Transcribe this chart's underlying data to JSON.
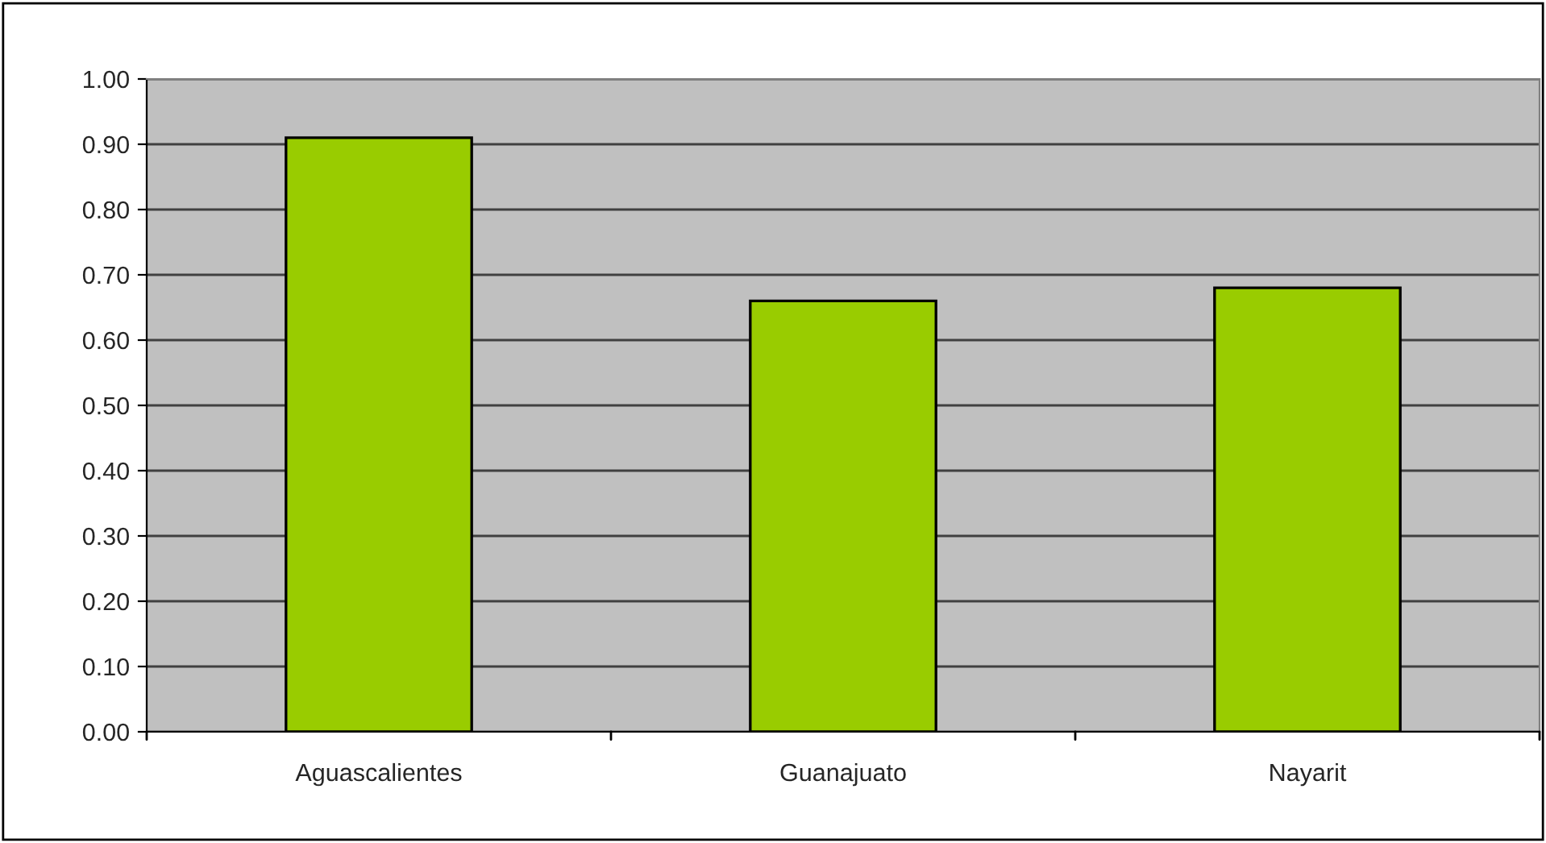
{
  "chart_data": {
    "type": "bar",
    "categories": [
      "Aguascalientes",
      "Guanajuato",
      "Nayarit"
    ],
    "values": [
      0.91,
      0.66,
      0.68
    ],
    "color": "#99cc00",
    "ylim": [
      0,
      1
    ],
    "yticks": [
      {
        "value": 0,
        "label": "0.00"
      },
      {
        "value": 0.1,
        "label": "0.10"
      },
      {
        "value": 0.2,
        "label": "0.20"
      },
      {
        "value": 0.3,
        "label": "0.30"
      },
      {
        "value": 0.4,
        "label": "0.40"
      },
      {
        "value": 0.5,
        "label": "0.50"
      },
      {
        "value": 0.6,
        "label": "0.60"
      },
      {
        "value": 0.7,
        "label": "0.70"
      },
      {
        "value": 0.8,
        "label": "0.80"
      },
      {
        "value": 0.9,
        "label": "0.90"
      },
      {
        "value": 1,
        "label": "1.00"
      }
    ],
    "grid": "y",
    "legend": false
  }
}
